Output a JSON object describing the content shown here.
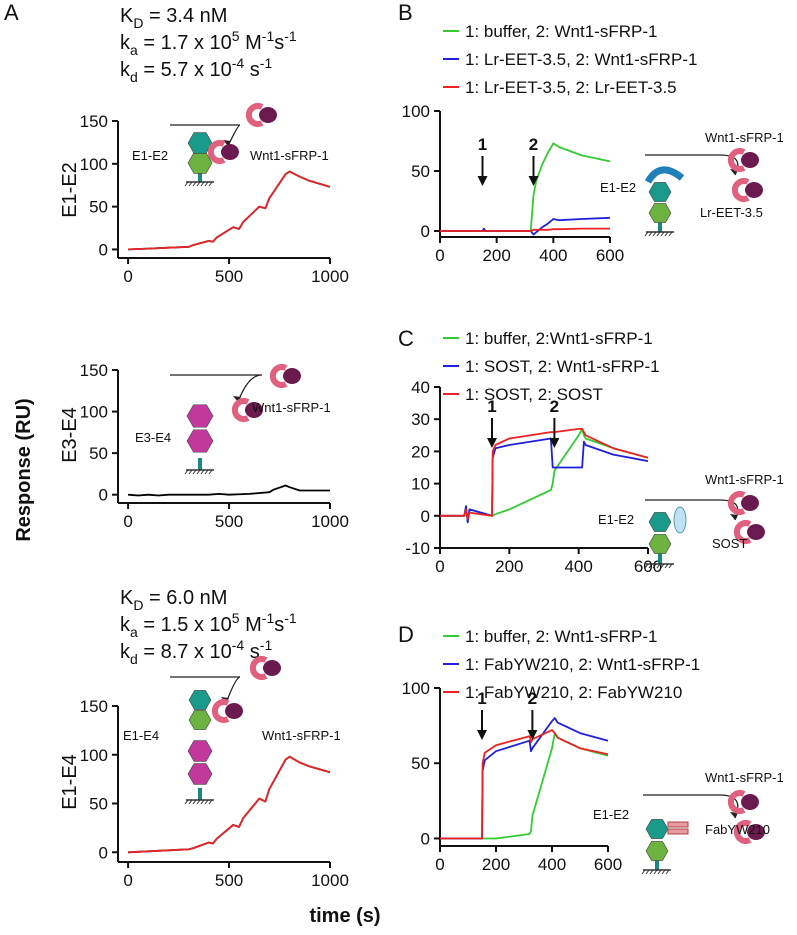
{
  "figure": {
    "y_label": "Response (RU)",
    "x_label": "time (s)"
  },
  "chart_data": [
    {
      "type": "line",
      "panel": "A",
      "row_label": "E1-E2",
      "annotations": [
        [
          {
            "text": "K"
          },
          {
            "text": "D",
            "shift": "sub"
          },
          {
            "text": " = 3.4 nM"
          }
        ],
        [
          {
            "text": "k"
          },
          {
            "text": "a",
            "shift": "sub"
          },
          {
            "text": " = 1.7 x 10"
          },
          {
            "text": "5",
            "shift": "sup"
          },
          {
            "text": " M"
          },
          {
            "text": "-1",
            "shift": "sup"
          },
          {
            "text": "s"
          },
          {
            "text": "-1",
            "shift": "sup"
          }
        ],
        [
          {
            "text": "k"
          },
          {
            "text": "d",
            "shift": "sub"
          },
          {
            "text": " = 5.7 x 10"
          },
          {
            "text": "-4",
            "shift": "sup"
          },
          {
            "text": " s"
          },
          {
            "text": "-1",
            "shift": "sup"
          }
        ]
      ],
      "diagram_labels": [
        "E1-E2",
        "Wnt1-sFRP-1"
      ],
      "xlim": [
        -50,
        1000
      ],
      "xticks": [
        0,
        500,
        1000
      ],
      "ylim": [
        -10,
        150
      ],
      "yticks": [
        0,
        50,
        100,
        150
      ],
      "x": [
        0,
        100,
        200,
        300,
        320,
        400,
        420,
        440,
        520,
        550,
        570,
        650,
        680,
        700,
        780,
        800,
        850,
        900,
        1000
      ],
      "series": [
        {
          "color": "#000000",
          "values": [
            0,
            1,
            2,
            3,
            5,
            10,
            9,
            14,
            26,
            24,
            32,
            50,
            48,
            60,
            88,
            91,
            85,
            80,
            73
          ]
        },
        {
          "color": "#e8262a",
          "values": [
            0,
            1,
            2,
            3,
            5,
            10,
            9,
            14,
            26,
            24,
            32,
            50,
            48,
            60,
            88,
            91,
            85,
            80,
            73
          ]
        }
      ]
    },
    {
      "type": "line",
      "row_label": "E3-E4",
      "diagram_labels": [
        "E3-E4",
        "Wnt1-sFRP-1"
      ],
      "xlim": [
        -50,
        1000
      ],
      "xticks": [
        0,
        500,
        1000
      ],
      "ylim": [
        -10,
        150
      ],
      "yticks": [
        0,
        50,
        100,
        150
      ],
      "x": [
        0,
        50,
        100,
        150,
        200,
        300,
        400,
        450,
        500,
        600,
        700,
        720,
        780,
        800,
        850,
        1000
      ],
      "series": [
        {
          "color": "#000000",
          "values": [
            0,
            -1,
            0,
            -1,
            0,
            0,
            0,
            1,
            0,
            1,
            3,
            6,
            11,
            9,
            5,
            5
          ]
        }
      ]
    },
    {
      "type": "line",
      "row_label": "E1-E4",
      "annotations": [
        [
          {
            "text": "K"
          },
          {
            "text": "D",
            "shift": "sub"
          },
          {
            "text": " = 6.0 nM"
          }
        ],
        [
          {
            "text": "k"
          },
          {
            "text": "a",
            "shift": "sub"
          },
          {
            "text": " = 1.5 x 10"
          },
          {
            "text": "5",
            "shift": "sup"
          },
          {
            "text": " M"
          },
          {
            "text": "-1",
            "shift": "sup"
          },
          {
            "text": "s"
          },
          {
            "text": "-1",
            "shift": "sup"
          }
        ],
        [
          {
            "text": "k"
          },
          {
            "text": "d",
            "shift": "sub"
          },
          {
            "text": " = 8.7 x 10"
          },
          {
            "text": "-4",
            "shift": "sup"
          },
          {
            "text": " s"
          },
          {
            "text": "-1",
            "shift": "sup"
          }
        ]
      ],
      "diagram_labels": [
        "E1-E4",
        "Wnt1-sFRP-1"
      ],
      "xlim": [
        -50,
        1000
      ],
      "xticks": [
        0,
        500,
        1000
      ],
      "ylim": [
        -10,
        150
      ],
      "yticks": [
        0,
        50,
        100,
        150
      ],
      "x": [
        0,
        100,
        200,
        300,
        320,
        400,
        420,
        440,
        520,
        550,
        570,
        650,
        680,
        700,
        780,
        800,
        850,
        900,
        1000
      ],
      "series": [
        {
          "color": "#000000",
          "values": [
            0,
            1,
            2,
            3,
            4,
            10,
            9,
            14,
            28,
            26,
            35,
            55,
            52,
            65,
            95,
            98,
            92,
            88,
            82
          ]
        },
        {
          "color": "#e8262a",
          "values": [
            0,
            1,
            2,
            3,
            4,
            10,
            9,
            14,
            28,
            26,
            35,
            55,
            52,
            65,
            95,
            98,
            92,
            88,
            82
          ]
        }
      ]
    },
    {
      "type": "line",
      "panel": "B",
      "diagram_labels": [
        "Wnt1-sFRP-1",
        "E1-E2",
        "Lr-EET-3.5"
      ],
      "markers": [
        {
          "label": "1",
          "x": 150
        },
        {
          "label": "2",
          "x": 330
        }
      ],
      "xlim": [
        0,
        600
      ],
      "xticks": [
        0,
        200,
        400,
        600
      ],
      "ylim": [
        -5,
        100
      ],
      "yticks": [
        0,
        50,
        100
      ],
      "x": [
        0,
        150,
        155,
        160,
        320,
        330,
        340,
        360,
        380,
        400,
        420,
        500,
        600
      ],
      "series": [
        {
          "name": "1: buffer, 2: Wnt1-sFRP-1",
          "color": "#33cc33",
          "values": [
            0,
            0,
            0,
            0,
            0,
            30,
            42,
            55,
            65,
            73,
            70,
            63,
            58
          ]
        },
        {
          "name": "1: Lr-EET-3.5, 2: Wnt1-sFRP-1",
          "color": "#1f1fe0",
          "values": [
            0,
            0,
            2,
            0,
            0,
            -3,
            -1,
            3,
            6,
            10,
            9,
            10,
            11
          ]
        },
        {
          "name": "1: Lr-EET-3.5, 2: Lr-EET-3.5",
          "color": "#ee2222",
          "values": [
            0,
            0,
            0,
            0,
            0,
            1,
            1,
            1,
            1,
            1.5,
            1.5,
            2,
            2
          ]
        }
      ]
    },
    {
      "type": "line",
      "panel": "C",
      "diagram_labels": [
        "Wnt1-sFRP-1",
        "E1-E2",
        "SOST"
      ],
      "markers": [
        {
          "label": "1",
          "x": 150
        },
        {
          "label": "2",
          "x": 330
        }
      ],
      "xlim": [
        0,
        600
      ],
      "xticks": [
        0,
        200,
        400,
        600
      ],
      "ylim": [
        -10,
        40
      ],
      "yticks": [
        -10,
        0,
        10,
        20,
        30,
        40
      ],
      "x": [
        0,
        70,
        75,
        80,
        85,
        150,
        152,
        160,
        200,
        320,
        325,
        330,
        400,
        410,
        415,
        420,
        500,
        600
      ],
      "series": [
        {
          "name": "1: buffer, 2:Wnt1-sFRP-1",
          "color": "#33cc33",
          "values": [
            0,
            0,
            3,
            -2,
            2,
            0,
            0,
            0.5,
            2,
            8,
            10,
            14,
            25,
            27,
            25,
            24,
            21,
            18
          ]
        },
        {
          "name": "1: SOST, 2: Wnt1-sFRP-1",
          "color": "#1f1fe0",
          "values": [
            0,
            0,
            3,
            -2,
            2,
            0,
            18,
            21,
            22,
            24,
            15,
            15,
            15,
            15,
            23,
            22,
            19,
            17
          ]
        },
        {
          "name": "1: SOST, 2: SOST",
          "color": "#ee2222",
          "values": [
            0,
            0,
            2,
            -1,
            1,
            0,
            20,
            22,
            24,
            26,
            26,
            26,
            27,
            27,
            26,
            25,
            21,
            18
          ]
        }
      ]
    },
    {
      "type": "line",
      "panel": "D",
      "diagram_labels": [
        "Wnt1-sFRP-1",
        "E1-E2",
        "FabYW210"
      ],
      "markers": [
        {
          "label": "1",
          "x": 150
        },
        {
          "label": "2",
          "x": 330
        }
      ],
      "xlim": [
        0,
        600
      ],
      "xticks": [
        0,
        200,
        400,
        600
      ],
      "ylim": [
        -5,
        100
      ],
      "yticks": [
        0,
        50,
        100
      ],
      "x": [
        0,
        70,
        150,
        152,
        160,
        200,
        320,
        325,
        330,
        400,
        410,
        420,
        500,
        600
      ],
      "series": [
        {
          "name": "1: buffer, 2: Wnt1-sFRP-1",
          "color": "#33cc33",
          "values": [
            0,
            0,
            0,
            0,
            0,
            0,
            3,
            5,
            15,
            60,
            70,
            67,
            60,
            55
          ]
        },
        {
          "name": "1: FabYW210, 2: Wnt1-sFRP-1",
          "color": "#1f1fe0",
          "values": [
            0,
            0,
            0,
            45,
            52,
            58,
            65,
            58,
            60,
            78,
            80,
            77,
            70,
            65
          ]
        },
        {
          "name": "1: FabYW210, 2: FabYW210",
          "color": "#ee2222",
          "values": [
            0,
            0,
            0,
            50,
            57,
            62,
            68,
            64,
            66,
            72,
            70,
            67,
            60,
            56
          ]
        }
      ]
    }
  ]
}
